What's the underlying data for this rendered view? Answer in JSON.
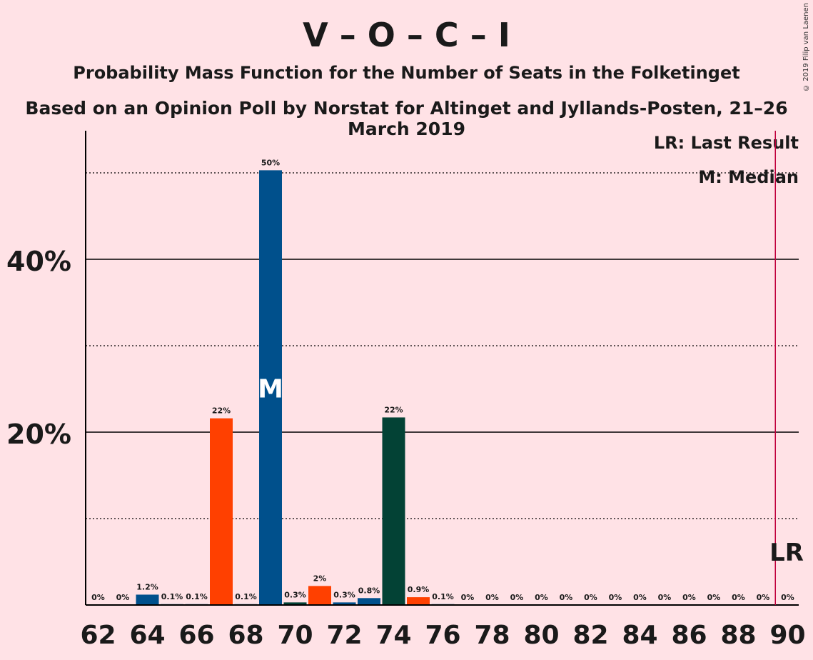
{
  "title": "V – O – C – I",
  "subtitle": "Probability Mass Function for the Number of Seats in the Folketinget",
  "subtitle2": "Based on an Opinion Poll by Norstat for Altinget and Jyllands-Posten, 21–26 March 2019",
  "copyright": "© 2019 Filip van Laenen",
  "legend": {
    "last_result": "LR: Last Result",
    "median": "M: Median"
  },
  "colors": {
    "background": "#FFE2E6",
    "blue": "#00508C",
    "red": "#FF4000",
    "green": "#034235",
    "lr_line": "#C0003C"
  },
  "chart_data": {
    "type": "bar",
    "x": [
      62,
      63,
      64,
      65,
      66,
      67,
      68,
      69,
      70,
      71,
      72,
      73,
      74,
      75,
      76,
      77,
      78,
      79,
      80,
      81,
      82,
      83,
      84,
      85,
      86,
      87,
      88,
      89,
      90
    ],
    "values": [
      0,
      0,
      1.2,
      0.1,
      0.1,
      21.6,
      0.1,
      50.3,
      0.3,
      2.2,
      0.3,
      0.8,
      21.7,
      0.9,
      0.1,
      0,
      0,
      0,
      0,
      0,
      0,
      0,
      0,
      0,
      0,
      0,
      0,
      0,
      0
    ],
    "labels": [
      "0%",
      "0%",
      "1.2%",
      "0.1%",
      "0.1%",
      "22%",
      "0.1%",
      "50%",
      "0.3%",
      "2%",
      "0.3%",
      "0.8%",
      "22%",
      "0.9%",
      "0.1%",
      "0%",
      "0%",
      "0%",
      "0%",
      "0%",
      "0%",
      "0%",
      "0%",
      "0%",
      "0%",
      "0%",
      "0%",
      "0%",
      "0%"
    ],
    "bar_colors": [
      "blue",
      "blue",
      "blue",
      "blue",
      "blue",
      "red",
      "blue",
      "blue",
      "green",
      "red",
      "blue",
      "blue",
      "green",
      "red",
      "blue",
      "blue",
      "blue",
      "blue",
      "blue",
      "blue",
      "blue",
      "blue",
      "blue",
      "blue",
      "blue",
      "blue",
      "blue",
      "blue",
      "blue"
    ],
    "xticks": [
      "62",
      "64",
      "66",
      "68",
      "70",
      "72",
      "74",
      "76",
      "78",
      "80",
      "82",
      "84",
      "86",
      "88",
      "90"
    ],
    "yticks": [
      "20%",
      "40%"
    ],
    "ylim": [
      0,
      55
    ],
    "gridlines_solid": [
      20,
      40
    ],
    "gridlines_dotted": [
      10,
      30,
      50
    ],
    "median_seat": 69,
    "median_label": "M",
    "last_result_seat": 89.5,
    "last_result_label": "LR"
  }
}
